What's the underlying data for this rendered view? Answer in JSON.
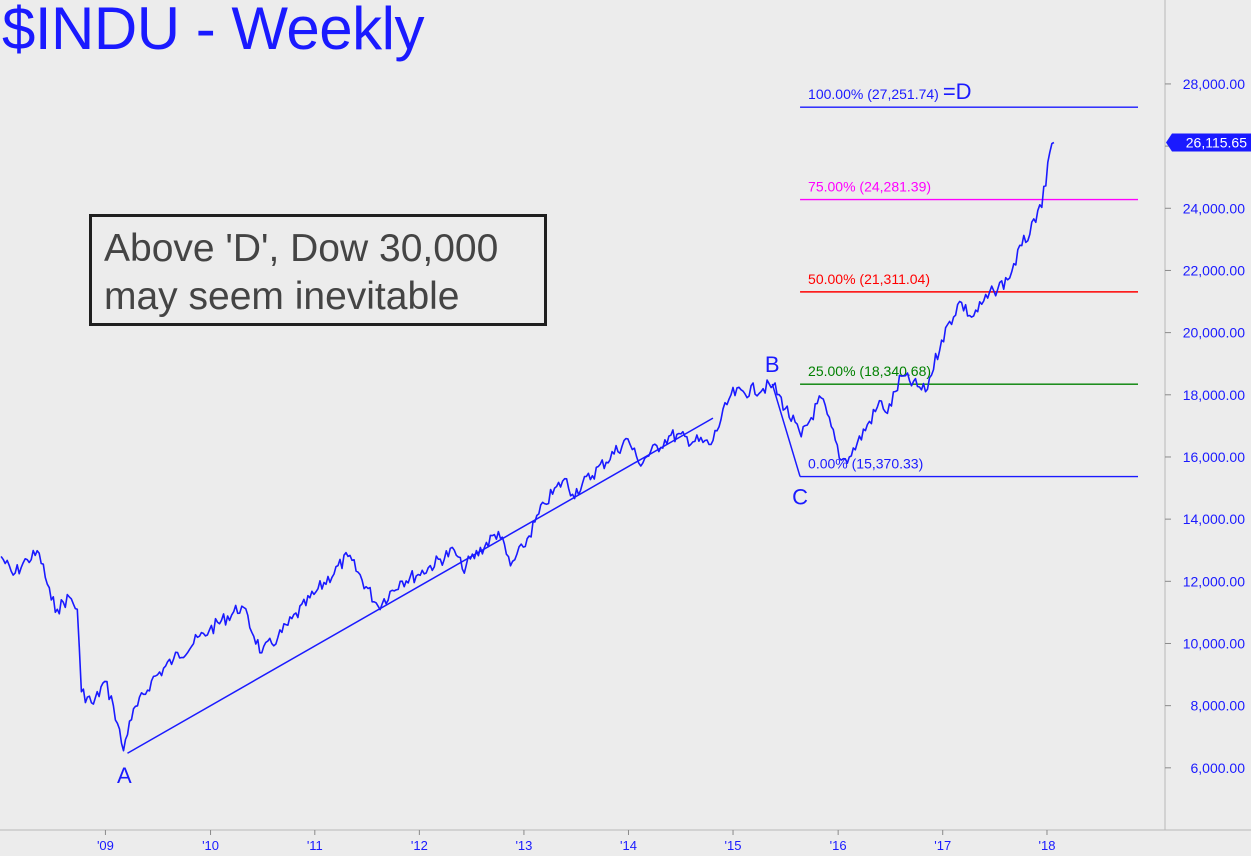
{
  "title": "$INDU - Weekly",
  "annotation": [
    "Above 'D', Dow 30,000",
    "may seem inevitable"
  ],
  "last_price_label": "26,115.65",
  "chart_data": {
    "type": "line",
    "series": [
      {
        "x": [
          "2008-01-04",
          "2008-02-15",
          "2008-04-04",
          "2008-05-16",
          "2008-06-27",
          "2008-07-18",
          "2008-08-29",
          "2008-09-26",
          "2008-10-10",
          "2008-11-21",
          "2008-12-31",
          "2009-01-30",
          "2009-03-06",
          "2009-03-27",
          "2009-06-12",
          "2009-08-28",
          "2009-12-31",
          "2010-04-23",
          "2010-07-02",
          "2010-08-27",
          "2010-12-31",
          "2011-04-29",
          "2011-08-12",
          "2011-10-28",
          "2011-12-30",
          "2012-05-04",
          "2012-06-01",
          "2012-10-05",
          "2012-11-16",
          "2012-12-31",
          "2013-03-15",
          "2013-05-24",
          "2013-06-21",
          "2013-12-31",
          "2014-02-07",
          "2014-05-30",
          "2014-10-17",
          "2014-12-26",
          "2015-05-22",
          "2015-08-28",
          "2015-11-06",
          "2016-01-15",
          "2016-02-12",
          "2016-06-03",
          "2016-06-24",
          "2016-08-12",
          "2016-11-04",
          "2016-12-30",
          "2017-03-03",
          "2017-04-14",
          "2017-06-30",
          "2017-08-18",
          "2017-10-06",
          "2017-11-24",
          "2017-12-29",
          "2018-01-12",
          "2018-01-26"
        ],
        "values": [
          12800,
          12200,
          12700,
          12900,
          11400,
          11100,
          11500,
          11100,
          8450,
          8050,
          8780,
          8000,
          6550,
          7500,
          8800,
          9500,
          10430,
          11200,
          9700,
          10200,
          11580,
          12800,
          11200,
          12000,
          12220,
          13000,
          12400,
          13600,
          12500,
          13100,
          14500,
          15300,
          14800,
          16580,
          15800,
          16700,
          16400,
          18000,
          18300,
          16650,
          17900,
          15900,
          16000,
          17800,
          17400,
          18600,
          18100,
          19760,
          21000,
          20500,
          21350,
          21700,
          22800,
          23550,
          24720,
          25800,
          26115
        ]
      }
    ],
    "harmonic_pattern": [
      {
        "label": "A",
        "x": "2009-03-09",
        "y": 6470
      },
      {
        "label": "B",
        "x": "2015-05-19",
        "y": 18350
      },
      {
        "label": "C",
        "x": "2015-08-24",
        "y": 15370.33
      },
      {
        "label": "D",
        "x": "2018-01-26",
        "y": 27251.74
      }
    ],
    "trendline": [
      {
        "x": "2009-03-20",
        "y": 6470
      },
      {
        "x": "2014-10-24",
        "y": 17250
      }
    ],
    "fib_levels": [
      {
        "label": "100.00% (27,251.74)",
        "suffix": "=D",
        "value": 27251.74,
        "color": "#1a1aff"
      },
      {
        "label": "75.00% (24,281.39)",
        "suffix": "",
        "value": 24281.39,
        "color": "#ff00ff"
      },
      {
        "label": "50.00% (21,311.04)",
        "suffix": "",
        "value": 21311.04,
        "color": "#ff0000"
      },
      {
        "label": "25.00% (18,340.68)",
        "suffix": "",
        "value": 18340.68,
        "color": "#008000"
      },
      {
        "label": "0.00% (15,370.33)",
        "suffix": "",
        "value": 15370.33,
        "color": "#1a1aff"
      }
    ],
    "y_ticks": [
      6000,
      8000,
      10000,
      12000,
      14000,
      16000,
      18000,
      20000,
      22000,
      24000,
      26000,
      28000
    ],
    "y_tick_labels": [
      "6,000.00",
      "8,000.00",
      "10,000.00",
      "12,000.00",
      "14,000.00",
      "16,000.00",
      "18,000.00",
      "20,000.00",
      "22,000.00",
      "24,000.00",
      "",
      "28,000.00"
    ],
    "x_ticks": [
      {
        "label": "'09",
        "date": "2009-01-02"
      },
      {
        "label": "'10",
        "date": "2010-01-04"
      },
      {
        "label": "'11",
        "date": "2011-01-03"
      },
      {
        "label": "'12",
        "date": "2012-01-03"
      },
      {
        "label": "'13",
        "date": "2013-01-02"
      },
      {
        "label": "'14",
        "date": "2014-01-02"
      },
      {
        "label": "'15",
        "date": "2015-01-02"
      },
      {
        "label": "'16",
        "date": "2016-01-04"
      },
      {
        "label": "'17",
        "date": "2017-01-03"
      },
      {
        "label": "'18",
        "date": "2018-01-02"
      }
    ],
    "ylim": [
      4000,
      30700
    ],
    "xlim": [
      "2007-12-31",
      "2019-02-18"
    ],
    "grid": false,
    "colors": {
      "price": "#1a1aff",
      "axis_text": "#1a1aff",
      "background": "#ececec"
    }
  }
}
